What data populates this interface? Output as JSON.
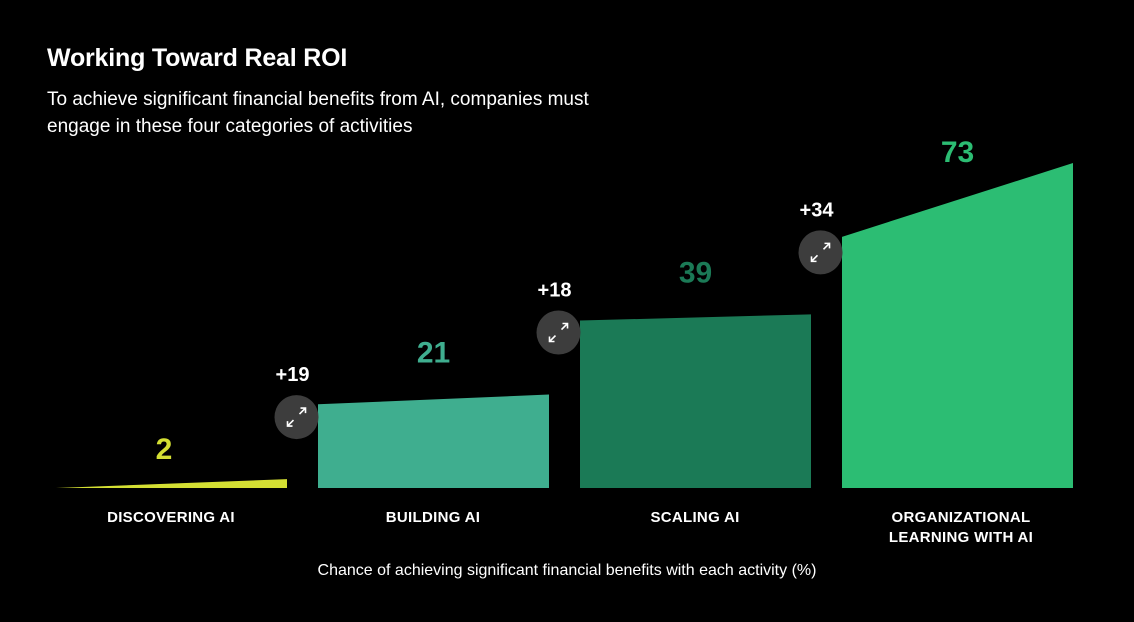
{
  "header": {
    "title": "Working Toward Real ROI",
    "subtitle": "To achieve significant financial benefits from AI, companies must engage in these four categories of activities"
  },
  "footnote": "Chance of achieving significant financial benefits with each activity (%)",
  "chart_data": {
    "type": "area",
    "title": "Working Toward Real ROI",
    "ylabel": "Chance of achieving significant financial benefits with each activity (%)",
    "ylim": [
      0,
      73
    ],
    "categories": [
      "DISCOVERING AI",
      "BUILDING AI",
      "SCALING AI",
      "ORGANIZATIONAL LEARNING WITH AI"
    ],
    "values": [
      2,
      21,
      39,
      73
    ],
    "increments": [
      "+19",
      "+18",
      "+34"
    ],
    "colors": [
      "#d4df33",
      "#3fae8f",
      "#1b7a56",
      "#2cbd73"
    ]
  }
}
